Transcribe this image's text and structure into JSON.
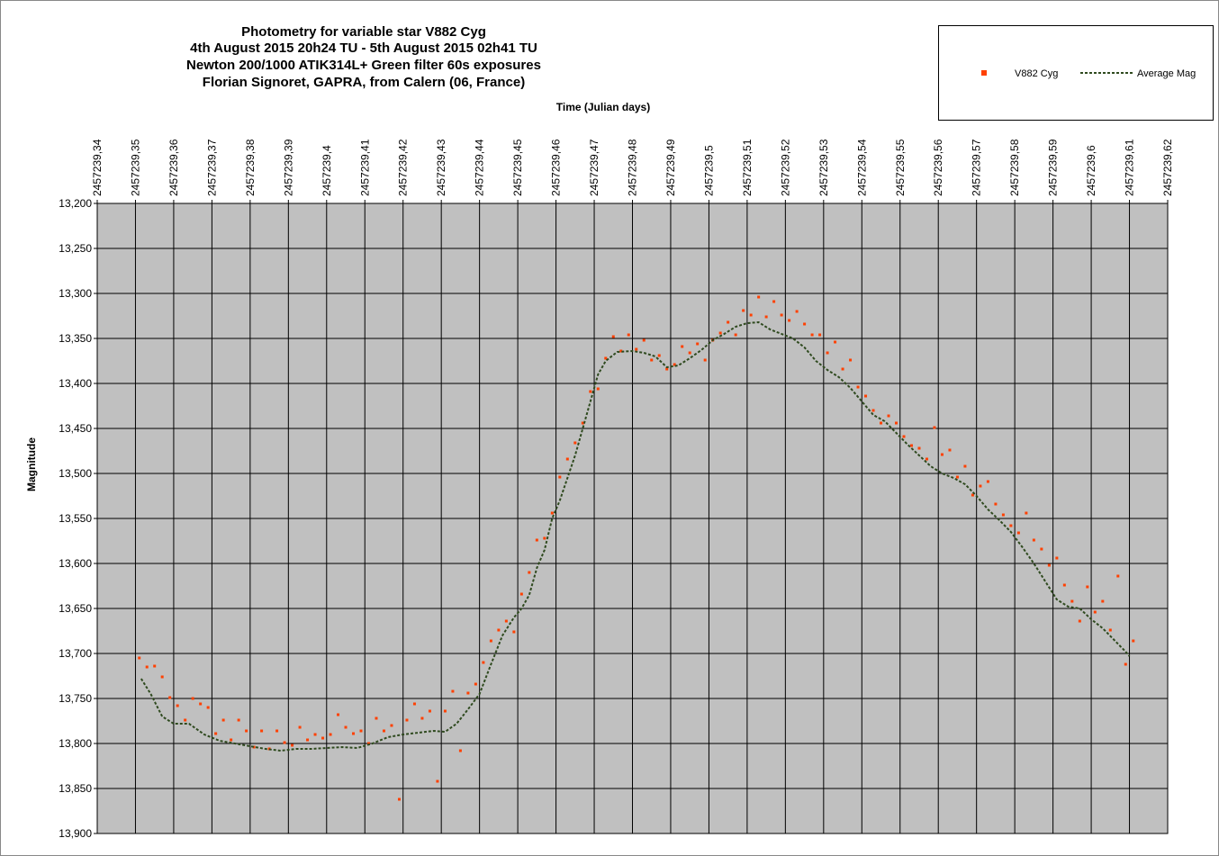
{
  "chart_data": {
    "type": "scatter",
    "title": [
      "Photometry for variable star V882 Cyg",
      "4th August 2015 20h24 TU - 5th August 2015 02h41 TU",
      "Newton 200/1000 ATIK314L+ Green filter 60s exposures",
      "Florian Signoret, GAPRA, from Calern (06, France)"
    ],
    "x_label": "Time (Julian days)",
    "y_label": "Magnitude",
    "xlim": [
      2457239.34,
      2457239.62
    ],
    "ylim": [
      13.9,
      13.2
    ],
    "grid": true,
    "legend": "top-right",
    "plot_background": "#c0c0c0",
    "xticks": [
      {
        "value": 2457239.34,
        "label": "2457239,34"
      },
      {
        "value": 2457239.35,
        "label": "2457239,35"
      },
      {
        "value": 2457239.36,
        "label": "2457239,36"
      },
      {
        "value": 2457239.37,
        "label": "2457239,37"
      },
      {
        "value": 2457239.38,
        "label": "2457239,38"
      },
      {
        "value": 2457239.39,
        "label": "2457239,39"
      },
      {
        "value": 2457239.4,
        "label": "2457239,4"
      },
      {
        "value": 2457239.41,
        "label": "2457239,41"
      },
      {
        "value": 2457239.42,
        "label": "2457239,42"
      },
      {
        "value": 2457239.43,
        "label": "2457239,43"
      },
      {
        "value": 2457239.44,
        "label": "2457239,44"
      },
      {
        "value": 2457239.45,
        "label": "2457239,45"
      },
      {
        "value": 2457239.46,
        "label": "2457239,46"
      },
      {
        "value": 2457239.47,
        "label": "2457239,47"
      },
      {
        "value": 2457239.48,
        "label": "2457239,48"
      },
      {
        "value": 2457239.49,
        "label": "2457239,49"
      },
      {
        "value": 2457239.5,
        "label": "2457239,5"
      },
      {
        "value": 2457239.51,
        "label": "2457239,51"
      },
      {
        "value": 2457239.52,
        "label": "2457239,52"
      },
      {
        "value": 2457239.53,
        "label": "2457239,53"
      },
      {
        "value": 2457239.54,
        "label": "2457239,54"
      },
      {
        "value": 2457239.55,
        "label": "2457239,55"
      },
      {
        "value": 2457239.56,
        "label": "2457239,56"
      },
      {
        "value": 2457239.57,
        "label": "2457239,57"
      },
      {
        "value": 2457239.58,
        "label": "2457239,58"
      },
      {
        "value": 2457239.59,
        "label": "2457239,59"
      },
      {
        "value": 2457239.6,
        "label": "2457239,6"
      },
      {
        "value": 2457239.61,
        "label": "2457239,61"
      },
      {
        "value": 2457239.62,
        "label": "2457239,62"
      }
    ],
    "yticks": [
      {
        "value": 13.2,
        "label": "13,200"
      },
      {
        "value": 13.25,
        "label": "13,250"
      },
      {
        "value": 13.3,
        "label": "13,300"
      },
      {
        "value": 13.35,
        "label": "13,350"
      },
      {
        "value": 13.4,
        "label": "13,400"
      },
      {
        "value": 13.45,
        "label": "13,450"
      },
      {
        "value": 13.5,
        "label": "13,500"
      },
      {
        "value": 13.55,
        "label": "13,550"
      },
      {
        "value": 13.6,
        "label": "13,600"
      },
      {
        "value": 13.65,
        "label": "13,650"
      },
      {
        "value": 13.7,
        "label": "13,700"
      },
      {
        "value": 13.75,
        "label": "13,750"
      },
      {
        "value": 13.8,
        "label": "13,800"
      },
      {
        "value": 13.85,
        "label": "13,850"
      },
      {
        "value": 13.9,
        "label": "13,900"
      }
    ],
    "series": [
      {
        "name": "V882 Cyg",
        "color": "#ff4000",
        "marker": "square",
        "x": [
          2457239.351,
          2457239.353,
          2457239.355,
          2457239.357,
          2457239.359,
          2457239.361,
          2457239.363,
          2457239.365,
          2457239.367,
          2457239.369,
          2457239.371,
          2457239.373,
          2457239.375,
          2457239.377,
          2457239.379,
          2457239.381,
          2457239.383,
          2457239.385,
          2457239.387,
          2457239.389,
          2457239.391,
          2457239.393,
          2457239.395,
          2457239.397,
          2457239.399,
          2457239.401,
          2457239.403,
          2457239.405,
          2457239.407,
          2457239.409,
          2457239.411,
          2457239.413,
          2457239.415,
          2457239.417,
          2457239.419,
          2457239.421,
          2457239.423,
          2457239.425,
          2457239.427,
          2457239.429,
          2457239.431,
          2457239.433,
          2457239.435,
          2457239.437,
          2457239.439,
          2457239.441,
          2457239.443,
          2457239.445,
          2457239.447,
          2457239.449,
          2457239.451,
          2457239.453,
          2457239.455,
          2457239.457,
          2457239.459,
          2457239.461,
          2457239.463,
          2457239.465,
          2457239.467,
          2457239.469,
          2457239.471,
          2457239.473,
          2457239.475,
          2457239.477,
          2457239.479,
          2457239.481,
          2457239.483,
          2457239.485,
          2457239.487,
          2457239.489,
          2457239.491,
          2457239.493,
          2457239.495,
          2457239.497,
          2457239.499,
          2457239.501,
          2457239.503,
          2457239.505,
          2457239.507,
          2457239.509,
          2457239.511,
          2457239.513,
          2457239.515,
          2457239.517,
          2457239.519,
          2457239.521,
          2457239.523,
          2457239.525,
          2457239.527,
          2457239.529,
          2457239.531,
          2457239.533,
          2457239.535,
          2457239.537,
          2457239.539,
          2457239.541,
          2457239.543,
          2457239.545,
          2457239.547,
          2457239.549,
          2457239.551,
          2457239.553,
          2457239.555,
          2457239.557,
          2457239.559,
          2457239.561,
          2457239.563,
          2457239.565,
          2457239.567,
          2457239.569,
          2457239.571,
          2457239.573,
          2457239.575,
          2457239.577,
          2457239.579,
          2457239.581,
          2457239.583,
          2457239.585,
          2457239.587,
          2457239.589,
          2457239.591,
          2457239.593,
          2457239.595,
          2457239.597,
          2457239.599,
          2457239.601,
          2457239.603,
          2457239.605,
          2457239.607,
          2457239.609,
          2457239.611
        ],
        "values": [
          13.705,
          13.715,
          13.714,
          13.726,
          13.749,
          13.758,
          13.774,
          13.75,
          13.756,
          13.76,
          13.789,
          13.774,
          13.796,
          13.774,
          13.786,
          13.804,
          13.786,
          13.806,
          13.786,
          13.799,
          13.802,
          13.782,
          13.796,
          13.79,
          13.794,
          13.79,
          13.768,
          13.782,
          13.789,
          13.786,
          13.8,
          13.772,
          13.786,
          13.78,
          13.862,
          13.774,
          13.756,
          13.772,
          13.764,
          13.842,
          13.764,
          13.742,
          13.808,
          13.744,
          13.734,
          13.71,
          13.686,
          13.674,
          13.664,
          13.676,
          13.634,
          13.61,
          13.574,
          13.572,
          13.544,
          13.504,
          13.484,
          13.466,
          13.444,
          13.409,
          13.406,
          13.372,
          13.348,
          13.364,
          13.346,
          13.362,
          13.352,
          13.374,
          13.369,
          13.384,
          13.379,
          13.359,
          13.366,
          13.356,
          13.374,
          13.352,
          13.344,
          13.332,
          13.346,
          13.319,
          13.324,
          13.304,
          13.326,
          13.309,
          13.324,
          13.33,
          13.32,
          13.334,
          13.346,
          13.346,
          13.366,
          13.354,
          13.384,
          13.374,
          13.404,
          13.414,
          13.43,
          13.444,
          13.436,
          13.444,
          13.459,
          13.469,
          13.472,
          13.484,
          13.449,
          13.479,
          13.474,
          13.504,
          13.492,
          13.524,
          13.514,
          13.509,
          13.534,
          13.546,
          13.558,
          13.566,
          13.544,
          13.574,
          13.584,
          13.602,
          13.594,
          13.624,
          13.642,
          13.664,
          13.626,
          13.654,
          13.642,
          13.674,
          13.614,
          13.712,
          13.686
        ]
      },
      {
        "name": "Average Mag",
        "color": "#2f4a1f",
        "line": "dashed",
        "x": [
          2457239.3515,
          2457239.354,
          2457239.357,
          2457239.36,
          2457239.364,
          2457239.368,
          2457239.372,
          2457239.376,
          2457239.38,
          2457239.384,
          2457239.388,
          2457239.392,
          2457239.396,
          2457239.4,
          2457239.404,
          2457239.408,
          2457239.412,
          2457239.416,
          2457239.42,
          2457239.424,
          2457239.428,
          2457239.431,
          2457239.434,
          2457239.437,
          2457239.44,
          2457239.443,
          2457239.446,
          2457239.449,
          2457239.451,
          2457239.453,
          2457239.455,
          2457239.457,
          2457239.459,
          2457239.461,
          2457239.463,
          2457239.465,
          2457239.467,
          2457239.469,
          2457239.471,
          2457239.473,
          2457239.476,
          2457239.48,
          2457239.483,
          2457239.486,
          2457239.489,
          2457239.492,
          2457239.495,
          2457239.498,
          2457239.501,
          2457239.504,
          2457239.507,
          2457239.51,
          2457239.513,
          2457239.516,
          2457239.519,
          2457239.522,
          2457239.525,
          2457239.528,
          2457239.531,
          2457239.534,
          2457239.537,
          2457239.54,
          2457239.543,
          2457239.546,
          2457239.549,
          2457239.552,
          2457239.555,
          2457239.558,
          2457239.561,
          2457239.564,
          2457239.567,
          2457239.57,
          2457239.573,
          2457239.576,
          2457239.579,
          2457239.582,
          2457239.585,
          2457239.588,
          2457239.591,
          2457239.594,
          2457239.597,
          2457239.6,
          2457239.603,
          2457239.606,
          2457239.609,
          2457239.61
        ],
        "values": [
          13.728,
          13.745,
          13.77,
          13.778,
          13.778,
          13.79,
          13.797,
          13.8,
          13.803,
          13.806,
          13.808,
          13.806,
          13.806,
          13.805,
          13.804,
          13.805,
          13.8,
          13.793,
          13.79,
          13.788,
          13.786,
          13.787,
          13.778,
          13.762,
          13.745,
          13.712,
          13.68,
          13.66,
          13.65,
          13.635,
          13.605,
          13.585,
          13.55,
          13.53,
          13.505,
          13.48,
          13.45,
          13.42,
          13.39,
          13.375,
          13.365,
          13.364,
          13.366,
          13.37,
          13.382,
          13.38,
          13.372,
          13.363,
          13.352,
          13.345,
          13.337,
          13.333,
          13.332,
          13.34,
          13.345,
          13.35,
          13.36,
          13.375,
          13.385,
          13.393,
          13.405,
          13.42,
          13.435,
          13.442,
          13.455,
          13.468,
          13.48,
          13.492,
          13.5,
          13.505,
          13.512,
          13.525,
          13.54,
          13.552,
          13.565,
          13.582,
          13.6,
          13.62,
          13.64,
          13.648,
          13.65,
          13.662,
          13.672,
          13.685,
          13.698,
          13.703
        ]
      }
    ]
  }
}
